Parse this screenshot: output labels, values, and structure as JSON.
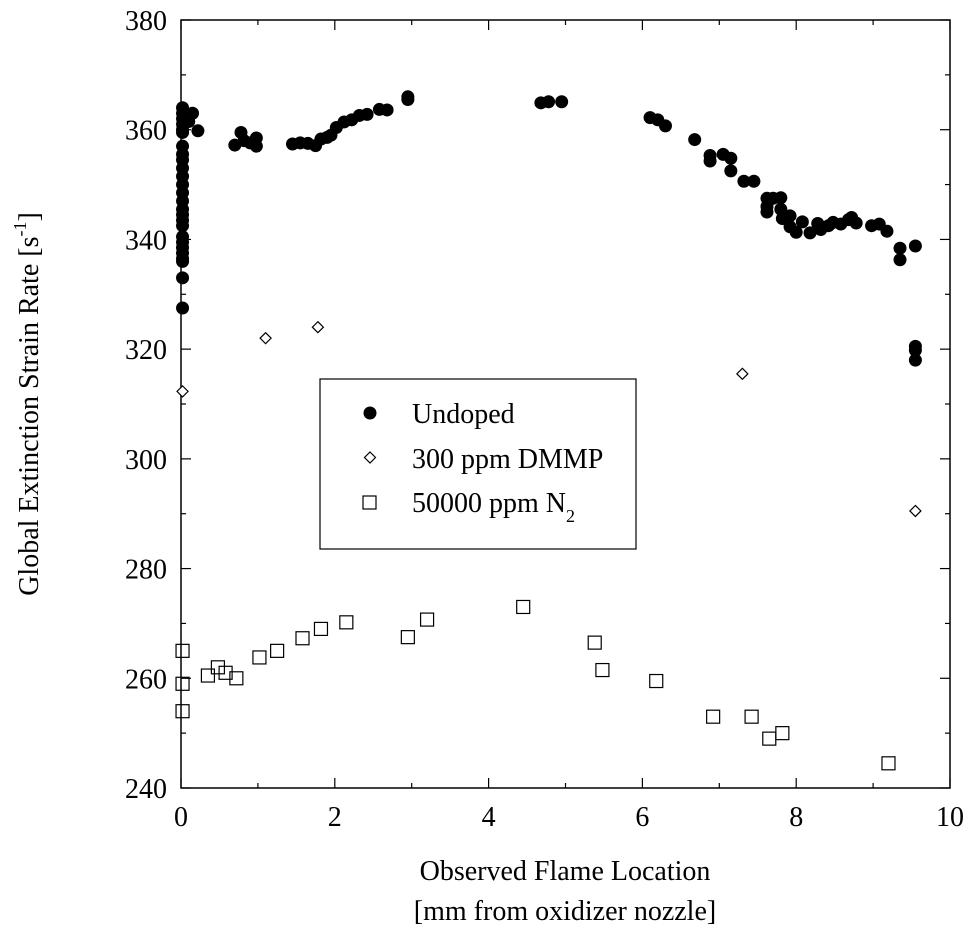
{
  "chart_data": {
    "type": "scatter",
    "title": "",
    "xlabel": "Observed Flame Location",
    "xlabel_line2": "[mm from oxidizer nozzle]",
    "ylabel": "Global Extinction Strain Rate [s",
    "ylabel_superscript": "-1",
    "ylabel_close": "]",
    "xlim": [
      0,
      10
    ],
    "ylim": [
      240,
      380
    ],
    "x_ticks": [
      "0",
      "2",
      "4",
      "6",
      "8",
      "10"
    ],
    "y_ticks": [
      "240",
      "260",
      "280",
      "300",
      "320",
      "340",
      "360",
      "380"
    ],
    "grid": false,
    "legend_position": "center-left",
    "series": [
      {
        "name": "Undoped",
        "marker": "filled-circle",
        "points": [
          [
            0.02,
            364.0
          ],
          [
            0.02,
            363.0
          ],
          [
            0.02,
            362.0
          ],
          [
            0.02,
            361.0
          ],
          [
            0.02,
            360.0
          ],
          [
            0.02,
            359.5
          ],
          [
            0.02,
            357.0
          ],
          [
            0.02,
            355.5
          ],
          [
            0.02,
            354.5
          ],
          [
            0.02,
            353.0
          ],
          [
            0.02,
            351.5
          ],
          [
            0.02,
            350.0
          ],
          [
            0.02,
            348.5
          ],
          [
            0.02,
            347.0
          ],
          [
            0.02,
            345.5
          ],
          [
            0.02,
            344.5
          ],
          [
            0.02,
            343.5
          ],
          [
            0.02,
            342.5
          ],
          [
            0.02,
            340.5
          ],
          [
            0.02,
            339.5
          ],
          [
            0.02,
            338.5
          ],
          [
            0.02,
            337.5
          ],
          [
            0.02,
            336.5
          ],
          [
            0.02,
            336.0
          ],
          [
            0.02,
            333.0
          ],
          [
            0.02,
            327.5
          ],
          [
            0.1,
            361.5
          ],
          [
            0.15,
            363.0
          ],
          [
            0.22,
            359.8
          ],
          [
            0.7,
            357.2
          ],
          [
            0.78,
            359.5
          ],
          [
            0.82,
            358.0
          ],
          [
            0.9,
            357.6
          ],
          [
            0.98,
            358.5
          ],
          [
            0.98,
            357.0
          ],
          [
            1.45,
            357.4
          ],
          [
            1.55,
            357.6
          ],
          [
            1.65,
            357.5
          ],
          [
            1.75,
            357.1
          ],
          [
            1.82,
            358.3
          ],
          [
            1.9,
            358.6
          ],
          [
            1.95,
            359.0
          ],
          [
            2.02,
            360.4
          ],
          [
            2.12,
            361.4
          ],
          [
            2.22,
            361.8
          ],
          [
            2.32,
            362.6
          ],
          [
            2.42,
            362.8
          ],
          [
            2.58,
            363.7
          ],
          [
            2.68,
            363.6
          ],
          [
            2.95,
            365.5
          ],
          [
            2.95,
            366.0
          ],
          [
            4.68,
            364.9
          ],
          [
            4.78,
            365.1
          ],
          [
            4.95,
            365.1
          ],
          [
            6.1,
            362.2
          ],
          [
            6.2,
            361.8
          ],
          [
            6.3,
            360.7
          ],
          [
            6.68,
            358.2
          ],
          [
            6.88,
            355.3
          ],
          [
            6.88,
            354.3
          ],
          [
            7.05,
            355.5
          ],
          [
            7.15,
            354.8
          ],
          [
            7.15,
            352.5
          ],
          [
            7.32,
            350.6
          ],
          [
            7.45,
            350.6
          ],
          [
            7.62,
            347.5
          ],
          [
            7.62,
            346.0
          ],
          [
            7.62,
            345.0
          ],
          [
            7.7,
            347.5
          ],
          [
            7.8,
            347.6
          ],
          [
            7.8,
            345.5
          ],
          [
            7.82,
            343.8
          ],
          [
            7.92,
            344.3
          ],
          [
            7.92,
            342.3
          ],
          [
            8.0,
            341.3
          ],
          [
            8.08,
            343.2
          ],
          [
            8.18,
            341.2
          ],
          [
            8.28,
            342.9
          ],
          [
            8.32,
            341.8
          ],
          [
            8.42,
            342.5
          ],
          [
            8.48,
            343.1
          ],
          [
            8.58,
            342.8
          ],
          [
            8.68,
            343.6
          ],
          [
            8.72,
            344.0
          ],
          [
            8.78,
            343.0
          ],
          [
            8.98,
            342.5
          ],
          [
            9.08,
            342.8
          ],
          [
            9.18,
            341.5
          ],
          [
            9.35,
            338.4
          ],
          [
            9.35,
            336.3
          ],
          [
            9.55,
            338.8
          ],
          [
            9.55,
            320.5
          ],
          [
            9.55,
            319.8
          ],
          [
            9.55,
            318.0
          ]
        ]
      },
      {
        "name": "300 ppm DMMP",
        "marker": "open-diamond",
        "points": [
          [
            0.02,
            312.3
          ],
          [
            1.1,
            322.0
          ],
          [
            1.78,
            324.0
          ],
          [
            7.3,
            315.5
          ],
          [
            9.55,
            290.5
          ]
        ]
      },
      {
        "name": "50000 ppm N",
        "name_subscript": "2",
        "marker": "open-square",
        "points": [
          [
            0.02,
            265.0
          ],
          [
            0.02,
            259.0
          ],
          [
            0.02,
            254.0
          ],
          [
            0.35,
            260.5
          ],
          [
            0.48,
            262.0
          ],
          [
            0.58,
            261.0
          ],
          [
            0.72,
            260.0
          ],
          [
            1.02,
            263.8
          ],
          [
            1.25,
            265.0
          ],
          [
            1.58,
            267.3
          ],
          [
            1.82,
            269.0
          ],
          [
            2.15,
            270.2
          ],
          [
            2.95,
            267.5
          ],
          [
            3.2,
            270.7
          ],
          [
            4.45,
            273.0
          ],
          [
            5.38,
            266.5
          ],
          [
            5.48,
            261.5
          ],
          [
            6.18,
            259.5
          ],
          [
            6.92,
            253.0
          ],
          [
            7.42,
            253.0
          ],
          [
            7.65,
            249.0
          ],
          [
            7.82,
            250.0
          ],
          [
            9.2,
            244.5
          ]
        ]
      }
    ]
  },
  "colors": {
    "marker": "#000000",
    "axis": "#000000",
    "background": "#ffffff"
  }
}
